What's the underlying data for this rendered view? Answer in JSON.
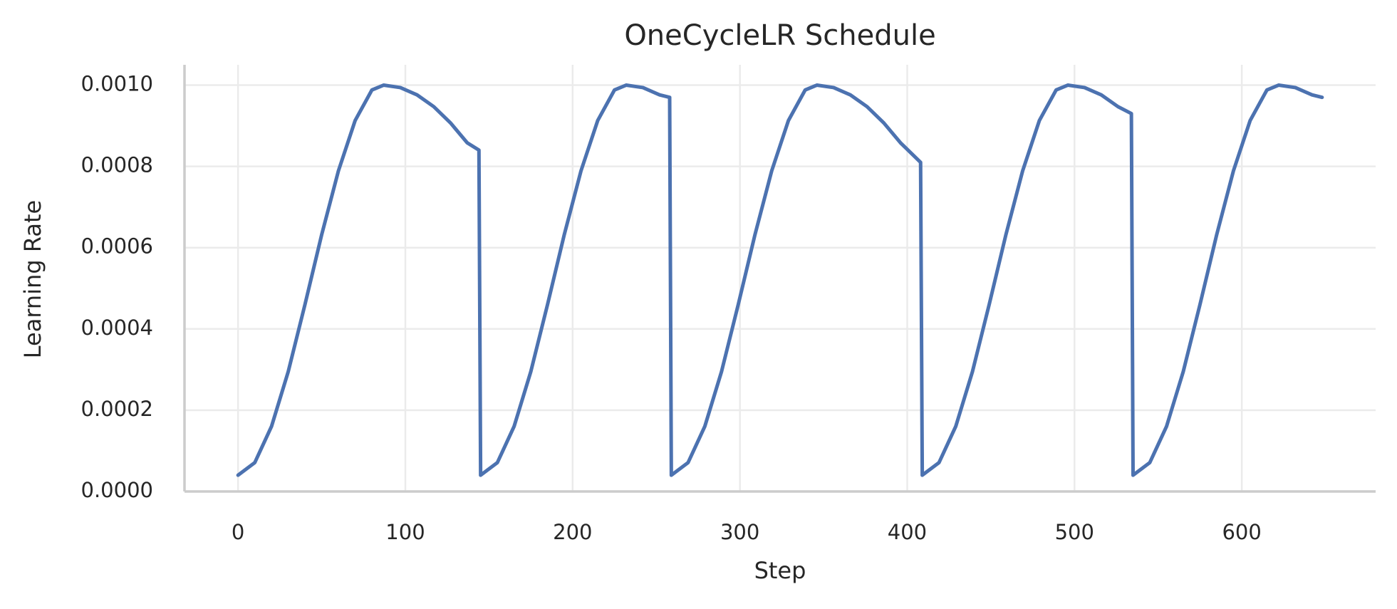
{
  "chart_data": {
    "type": "line",
    "title": "OneCycleLR Schedule",
    "x_label": "Step",
    "y_label": "Learning Rate",
    "x": [
      0,
      10,
      20,
      30,
      40,
      50,
      60,
      70,
      80,
      87,
      97,
      107,
      117,
      127,
      137,
      144,
      145,
      155,
      165,
      175,
      185,
      195,
      205,
      215,
      225,
      232,
      242,
      252,
      258,
      259,
      269,
      279,
      289,
      299,
      309,
      319,
      329,
      339,
      346,
      356,
      366,
      376,
      386,
      396,
      408,
      409,
      419,
      429,
      439,
      449,
      459,
      469,
      479,
      489,
      496,
      506,
      516,
      526,
      534,
      535,
      545,
      555,
      565,
      575,
      585,
      595,
      605,
      615,
      622,
      632,
      642,
      648
    ],
    "series": [
      {
        "name": "Learning Rate",
        "color": "#4c72b0",
        "values": [
          4e-05,
          7.1e-05,
          0.00016,
          0.000295,
          0.00046,
          0.000632,
          0.000789,
          0.000913,
          0.000988,
          0.001,
          0.000994,
          0.000976,
          0.000947,
          0.000907,
          0.000858,
          0.00084,
          4e-05,
          7.1e-05,
          0.00016,
          0.000295,
          0.00046,
          0.000632,
          0.000789,
          0.000913,
          0.000988,
          0.001,
          0.000994,
          0.000976,
          0.00097,
          4e-05,
          7.1e-05,
          0.00016,
          0.000295,
          0.00046,
          0.000632,
          0.000789,
          0.000913,
          0.000988,
          0.001,
          0.000994,
          0.000976,
          0.000947,
          0.000907,
          0.000858,
          0.00081,
          4e-05,
          7.1e-05,
          0.00016,
          0.000295,
          0.00046,
          0.000632,
          0.000789,
          0.000913,
          0.000988,
          0.001,
          0.000994,
          0.000976,
          0.000947,
          0.00093,
          4e-05,
          7.1e-05,
          0.00016,
          0.000295,
          0.00046,
          0.000632,
          0.000789,
          0.000913,
          0.000988,
          0.001,
          0.000994,
          0.000976,
          0.00097
        ]
      }
    ],
    "xlim": [
      -32,
      680
    ],
    "ylim": [
      0,
      0.00105
    ],
    "xticks": [
      0,
      100,
      200,
      300,
      400,
      500,
      600
    ],
    "yticks": [
      {
        "value": 0,
        "label": "0.0000"
      },
      {
        "value": 0.0002,
        "label": "0.0002"
      },
      {
        "value": 0.0004,
        "label": "0.0004"
      },
      {
        "value": 0.0006,
        "label": "0.0006"
      },
      {
        "value": 0.0008,
        "label": "0.0008"
      },
      {
        "value": 0.001,
        "label": "0.0010"
      }
    ],
    "grid": true
  }
}
